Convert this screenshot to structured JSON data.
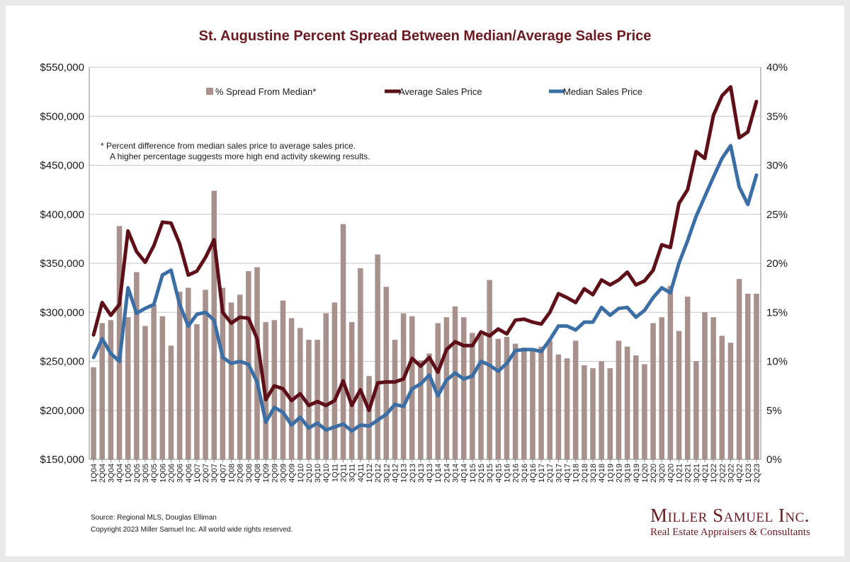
{
  "chart_data": {
    "type": "bar+line",
    "title": "St. Augustine Percent Spread Between Median/Average Sales Price",
    "categories": [
      "1Q04",
      "2Q04",
      "3Q04",
      "4Q04",
      "1Q05",
      "2Q05",
      "3Q05",
      "4Q05",
      "1Q06",
      "2Q06",
      "3Q06",
      "4Q06",
      "1Q07",
      "2Q07",
      "3Q07",
      "4Q07",
      "1Q08",
      "2Q08",
      "3Q08",
      "4Q08",
      "1Q09",
      "2Q09",
      "3Q09",
      "4Q09",
      "1Q10",
      "2Q10",
      "3Q10",
      "4Q10",
      "1Q11",
      "2Q11",
      "3Q11",
      "4Q11",
      "1Q12",
      "2Q12",
      "3Q12",
      "4Q12",
      "1Q13",
      "2Q13",
      "3Q13",
      "4Q13",
      "1Q14",
      "2Q14",
      "3Q14",
      "4Q14",
      "1Q15",
      "2Q15",
      "3Q15",
      "4Q15",
      "1Q16",
      "2Q16",
      "3Q16",
      "4Q16",
      "1Q17",
      "2Q17",
      "3Q17",
      "4Q17",
      "1Q18",
      "2Q18",
      "3Q18",
      "4Q18",
      "1Q19",
      "2Q19",
      "3Q19",
      "4Q19",
      "1Q20",
      "2Q20",
      "3Q20",
      "4Q20",
      "1Q21",
      "2Q21",
      "3Q21",
      "4Q21",
      "1Q22",
      "2Q22",
      "3Q22",
      "4Q22",
      "1Q23",
      "2Q23"
    ],
    "y_left": {
      "ticks": [
        "$150,000",
        "$200,000",
        "$250,000",
        "$300,000",
        "$350,000",
        "$400,000",
        "$450,000",
        "$500,000",
        "$550,000"
      ],
      "lim": [
        150000,
        550000
      ]
    },
    "y_right": {
      "ticks": [
        "0%",
        "5%",
        "10%",
        "15%",
        "20%",
        "25%",
        "30%",
        "35%",
        "40%"
      ],
      "lim": [
        0,
        40
      ]
    },
    "series": [
      {
        "name": "% Spread From Median*",
        "type": "bar",
        "axis": "right",
        "color": "#a8908d",
        "values": [
          9.4,
          13.9,
          14.2,
          23.8,
          14.5,
          19.1,
          13.6,
          15.8,
          14.6,
          11.6,
          17.1,
          17.5,
          13.8,
          17.3,
          27.4,
          17.5,
          16.0,
          16.8,
          19.2,
          19.6,
          14.0,
          14.2,
          16.2,
          14.4,
          13.4,
          12.2,
          12.2,
          14.9,
          16.0,
          24.0,
          14.0,
          19.5,
          8.5,
          20.9,
          17.6,
          12.2,
          14.9,
          14.6,
          10.1,
          10.8,
          13.9,
          14.5,
          15.6,
          14.5,
          12.9,
          12.7,
          18.3,
          12.3,
          12.5,
          11.8,
          11.4,
          11.2,
          11.5,
          12.1,
          10.7,
          10.3,
          12.1,
          9.6,
          9.3,
          10.0,
          9.3,
          12.1,
          11.5,
          10.6,
          9.7,
          13.9,
          14.5,
          17.7,
          13.1,
          16.6,
          10.0,
          15.0,
          14.5,
          12.6,
          11.9,
          18.4,
          16.9,
          16.9
        ]
      },
      {
        "name": "Average Sales Price",
        "type": "line",
        "axis": "left",
        "color": "#5e0f17",
        "values": [
          277000,
          310000,
          297000,
          308000,
          383000,
          362000,
          351000,
          368000,
          392000,
          391000,
          370000,
          338000,
          342000,
          356000,
          374000,
          300000,
          289000,
          295000,
          294000,
          273000,
          211000,
          225000,
          222000,
          210000,
          217000,
          205000,
          209000,
          205000,
          210000,
          230000,
          205000,
          221000,
          200000,
          228000,
          229000,
          229000,
          232000,
          253000,
          245000,
          254000,
          239000,
          262000,
          270000,
          266000,
          266000,
          280000,
          276000,
          283000,
          278000,
          292000,
          293000,
          290000,
          288000,
          300000,
          319000,
          315000,
          310000,
          324000,
          318000,
          333000,
          328000,
          333000,
          341000,
          328000,
          332000,
          343000,
          369000,
          366000,
          411000,
          425000,
          464000,
          457000,
          501000,
          521000,
          530000,
          478000,
          484000,
          515000
        ]
      },
      {
        "name": "Median Sales Price",
        "type": "line",
        "axis": "left",
        "color": "#3a6ea5",
        "values": [
          254000,
          273000,
          258000,
          250000,
          325000,
          299000,
          304000,
          308000,
          338000,
          343000,
          308000,
          286000,
          298000,
          300000,
          292000,
          254000,
          248000,
          250000,
          247000,
          229000,
          188000,
          203000,
          198000,
          185000,
          193000,
          182000,
          187000,
          180000,
          183000,
          186000,
          179000,
          185000,
          184000,
          190000,
          196000,
          206000,
          204000,
          222000,
          227000,
          236000,
          215000,
          231000,
          238000,
          232000,
          235000,
          250000,
          246000,
          240000,
          248000,
          261000,
          262000,
          262000,
          260000,
          272000,
          286000,
          286000,
          282000,
          290000,
          290000,
          305000,
          297000,
          304000,
          305000,
          295000,
          302000,
          315000,
          325000,
          320000,
          350000,
          373000,
          398000,
          418000,
          438000,
          457000,
          470000,
          428000,
          410000,
          440000
        ]
      }
    ],
    "legend_position": "top",
    "note_lines": [
      "*  Percent difference from median sales price to average sales price.",
      "A higher percentage suggests more high end activity skewing results."
    ]
  },
  "footer": {
    "source": "Source: Regional MLS, Douglas Elliman",
    "copyright": "Copyright 2023 Miller Samuel Inc.  All world wide rights reserved."
  },
  "logo": {
    "name": "Miller Samuel Inc.",
    "tagline": "Real Estate Appraisers & Consultants"
  },
  "colors": {
    "brand": "#6b1a22",
    "bar": "#a8908d",
    "avg_line": "#5e0f17",
    "median_line": "#3a6ea5"
  }
}
